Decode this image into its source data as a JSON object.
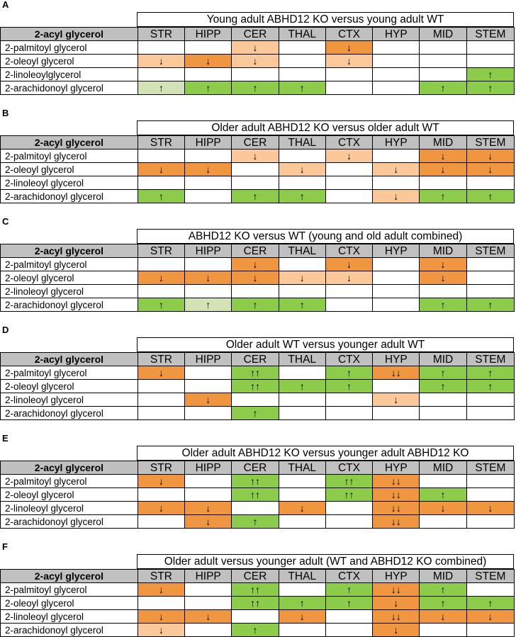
{
  "colors": {
    "strong_decrease": "#f09540",
    "weak_decrease": "#fbc89a",
    "strong_increase": "#8ccc4a",
    "weak_increase": "#d4e3b6",
    "header_bg": "#c0c0c0"
  },
  "row_header": "2-acyl glycerol",
  "regions": [
    "STR",
    "HIPP",
    "CER",
    "THAL",
    "CTX",
    "HYP",
    "MID",
    "STEM"
  ],
  "panels": [
    {
      "label": "A",
      "title": "Young adult ABHD12 KO versus young adult WT",
      "rows": [
        {
          "name": "2-palmitoyl glycerol",
          "cells": [
            {
              "v": "",
              "c": ""
            },
            {
              "v": "",
              "c": ""
            },
            {
              "v": "↓",
              "c": "l"
            },
            {
              "v": "",
              "c": ""
            },
            {
              "v": "↓",
              "c": "o"
            },
            {
              "v": "",
              "c": ""
            },
            {
              "v": "",
              "c": ""
            },
            {
              "v": "",
              "c": ""
            }
          ]
        },
        {
          "name": "2-oleoyl glycerol",
          "cells": [
            {
              "v": "↓",
              "c": "l"
            },
            {
              "v": "↓",
              "c": "o"
            },
            {
              "v": "↓",
              "c": "l"
            },
            {
              "v": "",
              "c": ""
            },
            {
              "v": "↓",
              "c": "l"
            },
            {
              "v": "",
              "c": ""
            },
            {
              "v": "",
              "c": ""
            },
            {
              "v": "",
              "c": ""
            }
          ]
        },
        {
          "name": "2-linoleoylglycerol",
          "cells": [
            {
              "v": "",
              "c": ""
            },
            {
              "v": "",
              "c": ""
            },
            {
              "v": "",
              "c": ""
            },
            {
              "v": "",
              "c": ""
            },
            {
              "v": "",
              "c": ""
            },
            {
              "v": "",
              "c": ""
            },
            {
              "v": "",
              "c": ""
            },
            {
              "v": "↑",
              "c": "g"
            }
          ]
        },
        {
          "name": "2-arachidonoyl glycerol",
          "cells": [
            {
              "v": "↑",
              "c": "p"
            },
            {
              "v": "↑",
              "c": "g"
            },
            {
              "v": "↑",
              "c": "g"
            },
            {
              "v": "↑",
              "c": "g"
            },
            {
              "v": "",
              "c": ""
            },
            {
              "v": "",
              "c": ""
            },
            {
              "v": "↑",
              "c": "g"
            },
            {
              "v": "↑",
              "c": "g"
            }
          ]
        }
      ]
    },
    {
      "label": "B",
      "title": "Older adult ABHD12 KO versus older adult WT",
      "rows": [
        {
          "name": "2-palmitoyl glycerol",
          "cells": [
            {
              "v": "",
              "c": ""
            },
            {
              "v": "",
              "c": ""
            },
            {
              "v": "↓",
              "c": "l"
            },
            {
              "v": "",
              "c": ""
            },
            {
              "v": "↓",
              "c": "l"
            },
            {
              "v": "",
              "c": ""
            },
            {
              "v": "↓",
              "c": "o"
            },
            {
              "v": "↓",
              "c": "o"
            }
          ]
        },
        {
          "name": "2-oleoyl glycerol",
          "cells": [
            {
              "v": "↓",
              "c": "o"
            },
            {
              "v": "↓",
              "c": "o"
            },
            {
              "v": "",
              "c": ""
            },
            {
              "v": "↓",
              "c": "l"
            },
            {
              "v": "",
              "c": ""
            },
            {
              "v": "↓",
              "c": "l"
            },
            {
              "v": "↓",
              "c": "o"
            },
            {
              "v": "↓",
              "c": "o"
            }
          ]
        },
        {
          "name": "2-linoleoyl glycerol",
          "cells": [
            {
              "v": "",
              "c": ""
            },
            {
              "v": "",
              "c": ""
            },
            {
              "v": "",
              "c": ""
            },
            {
              "v": "",
              "c": ""
            },
            {
              "v": "",
              "c": ""
            },
            {
              "v": "",
              "c": ""
            },
            {
              "v": "",
              "c": ""
            },
            {
              "v": "",
              "c": ""
            }
          ]
        },
        {
          "name": "2-arachidonoyl glycerol",
          "cells": [
            {
              "v": "↑",
              "c": "g"
            },
            {
              "v": "",
              "c": ""
            },
            {
              "v": "↑",
              "c": "g"
            },
            {
              "v": "↑",
              "c": "g"
            },
            {
              "v": "",
              "c": ""
            },
            {
              "v": "↓",
              "c": "l"
            },
            {
              "v": "↑",
              "c": "g"
            },
            {
              "v": "↑",
              "c": "g"
            }
          ]
        }
      ]
    },
    {
      "label": "C",
      "title": "ABHD12 KO versus WT (young and old adult combined)",
      "rows": [
        {
          "name": "2-palmitoyl glycerol",
          "cells": [
            {
              "v": "",
              "c": ""
            },
            {
              "v": "",
              "c": ""
            },
            {
              "v": "↓",
              "c": "o"
            },
            {
              "v": "",
              "c": ""
            },
            {
              "v": "↓",
              "c": "o"
            },
            {
              "v": "",
              "c": ""
            },
            {
              "v": "↓",
              "c": "o"
            },
            {
              "v": "",
              "c": ""
            }
          ]
        },
        {
          "name": "2-oleoyl glycerol",
          "cells": [
            {
              "v": "↓",
              "c": "o"
            },
            {
              "v": "↓",
              "c": "o"
            },
            {
              "v": "↓",
              "c": "o"
            },
            {
              "v": "↓",
              "c": "l"
            },
            {
              "v": "↓",
              "c": "l"
            },
            {
              "v": "",
              "c": ""
            },
            {
              "v": "↓",
              "c": "o"
            },
            {
              "v": "",
              "c": ""
            }
          ]
        },
        {
          "name": "2-linoleoyl glycerol",
          "cells": [
            {
              "v": "",
              "c": ""
            },
            {
              "v": "",
              "c": ""
            },
            {
              "v": "",
              "c": ""
            },
            {
              "v": "",
              "c": ""
            },
            {
              "v": "",
              "c": ""
            },
            {
              "v": "",
              "c": ""
            },
            {
              "v": "",
              "c": ""
            },
            {
              "v": "",
              "c": ""
            }
          ]
        },
        {
          "name": "2-arachidonoyl glycerol",
          "cells": [
            {
              "v": "↑",
              "c": "g"
            },
            {
              "v": "↑",
              "c": "p"
            },
            {
              "v": "↑",
              "c": "g"
            },
            {
              "v": "↑",
              "c": "g"
            },
            {
              "v": "",
              "c": ""
            },
            {
              "v": "",
              "c": ""
            },
            {
              "v": "↑",
              "c": "g"
            },
            {
              "v": "↑",
              "c": "g"
            }
          ]
        }
      ]
    },
    {
      "label": "D",
      "title": "Older adult WT versus younger adult WT",
      "rows": [
        {
          "name": "2-palmitoyl glycerol",
          "cells": [
            {
              "v": "↓",
              "c": "o"
            },
            {
              "v": "",
              "c": ""
            },
            {
              "v": "↑↑",
              "c": "g"
            },
            {
              "v": "",
              "c": ""
            },
            {
              "v": "↑",
              "c": "g"
            },
            {
              "v": "↓↓",
              "c": "o"
            },
            {
              "v": "↑",
              "c": "g"
            },
            {
              "v": "↑",
              "c": "g"
            }
          ]
        },
        {
          "name": "2-oleoyl glycerol",
          "cells": [
            {
              "v": "",
              "c": ""
            },
            {
              "v": "",
              "c": ""
            },
            {
              "v": "↑↑",
              "c": "g"
            },
            {
              "v": "↑",
              "c": "g"
            },
            {
              "v": "↑",
              "c": "g"
            },
            {
              "v": "",
              "c": ""
            },
            {
              "v": "↑",
              "c": "g"
            },
            {
              "v": "↑",
              "c": "g"
            }
          ]
        },
        {
          "name": "2-linoleoyl glycerol",
          "cells": [
            {
              "v": "",
              "c": ""
            },
            {
              "v": "↓",
              "c": "o"
            },
            {
              "v": "",
              "c": ""
            },
            {
              "v": "",
              "c": ""
            },
            {
              "v": "",
              "c": ""
            },
            {
              "v": "↓",
              "c": "l"
            },
            {
              "v": "",
              "c": ""
            },
            {
              "v": "",
              "c": ""
            }
          ]
        },
        {
          "name": "2-arachidonoyl glycerol",
          "cells": [
            {
              "v": "",
              "c": ""
            },
            {
              "v": "",
              "c": ""
            },
            {
              "v": "↑",
              "c": "g"
            },
            {
              "v": "",
              "c": ""
            },
            {
              "v": "",
              "c": ""
            },
            {
              "v": "",
              "c": ""
            },
            {
              "v": "",
              "c": ""
            },
            {
              "v": "",
              "c": ""
            }
          ]
        }
      ]
    },
    {
      "label": "E",
      "title": "Older adult ABHD12 KO versus younger adult ABHD12 KO",
      "rows": [
        {
          "name": "2-palmitoyl glycerol",
          "cells": [
            {
              "v": "↓",
              "c": "o"
            },
            {
              "v": "",
              "c": ""
            },
            {
              "v": "↑↑",
              "c": "g"
            },
            {
              "v": "",
              "c": ""
            },
            {
              "v": "↑↑",
              "c": "g"
            },
            {
              "v": "↓↓",
              "c": "o"
            },
            {
              "v": "",
              "c": ""
            },
            {
              "v": "",
              "c": ""
            }
          ]
        },
        {
          "name": "2-oleoyl glycerol",
          "cells": [
            {
              "v": "",
              "c": ""
            },
            {
              "v": "",
              "c": ""
            },
            {
              "v": "↑↑",
              "c": "g"
            },
            {
              "v": "",
              "c": ""
            },
            {
              "v": "↑↑",
              "c": "g"
            },
            {
              "v": "↓↓",
              "c": "o"
            },
            {
              "v": "↑",
              "c": "g"
            },
            {
              "v": "",
              "c": ""
            }
          ]
        },
        {
          "name": "2-linoleoyl glycerol",
          "cells": [
            {
              "v": "↓",
              "c": "o"
            },
            {
              "v": "↓",
              "c": "o"
            },
            {
              "v": "",
              "c": ""
            },
            {
              "v": "↓",
              "c": "o"
            },
            {
              "v": "",
              "c": ""
            },
            {
              "v": "↓↓",
              "c": "o"
            },
            {
              "v": "↓",
              "c": "o"
            },
            {
              "v": "↓",
              "c": "o"
            }
          ]
        },
        {
          "name": "2-arachidonoyl glycerol",
          "cells": [
            {
              "v": "",
              "c": ""
            },
            {
              "v": "↓",
              "c": "o"
            },
            {
              "v": "↑",
              "c": "g"
            },
            {
              "v": "",
              "c": ""
            },
            {
              "v": "",
              "c": ""
            },
            {
              "v": "↓↓",
              "c": "o"
            },
            {
              "v": "",
              "c": ""
            },
            {
              "v": "",
              "c": ""
            }
          ]
        }
      ]
    },
    {
      "label": "F",
      "title": "Older adult versus younger adult (WT and ABHD12 KO combined)",
      "rows": [
        {
          "name": "2-palmitoyl glycerol",
          "cells": [
            {
              "v": "↓",
              "c": "o"
            },
            {
              "v": "",
              "c": ""
            },
            {
              "v": "↑↑",
              "c": "g"
            },
            {
              "v": "",
              "c": ""
            },
            {
              "v": "↑",
              "c": "g"
            },
            {
              "v": "↓↓",
              "c": "o"
            },
            {
              "v": "↑",
              "c": "g"
            },
            {
              "v": "",
              "c": ""
            }
          ]
        },
        {
          "name": "2-oleoyl glycerol",
          "cells": [
            {
              "v": "",
              "c": ""
            },
            {
              "v": "",
              "c": ""
            },
            {
              "v": "↑↑",
              "c": "g"
            },
            {
              "v": "↑",
              "c": "g"
            },
            {
              "v": "↑",
              "c": "g"
            },
            {
              "v": "↓",
              "c": "o"
            },
            {
              "v": "↑",
              "c": "g"
            },
            {
              "v": "↑",
              "c": "g"
            }
          ]
        },
        {
          "name": "2-linoleoyl glycerol",
          "cells": [
            {
              "v": "↓",
              "c": "o"
            },
            {
              "v": "↓",
              "c": "o"
            },
            {
              "v": "",
              "c": ""
            },
            {
              "v": "↓",
              "c": "o"
            },
            {
              "v": "",
              "c": ""
            },
            {
              "v": "↓↓",
              "c": "o"
            },
            {
              "v": "↓",
              "c": "o"
            },
            {
              "v": "↓",
              "c": "o"
            }
          ]
        },
        {
          "name": "2-arachidonoyl glycerol",
          "cells": [
            {
              "v": "↓",
              "c": "l"
            },
            {
              "v": "",
              "c": ""
            },
            {
              "v": "↑",
              "c": "g"
            },
            {
              "v": "",
              "c": ""
            },
            {
              "v": "",
              "c": ""
            },
            {
              "v": "↓",
              "c": "o"
            },
            {
              "v": "",
              "c": ""
            },
            {
              "v": "",
              "c": ""
            }
          ]
        }
      ]
    }
  ]
}
